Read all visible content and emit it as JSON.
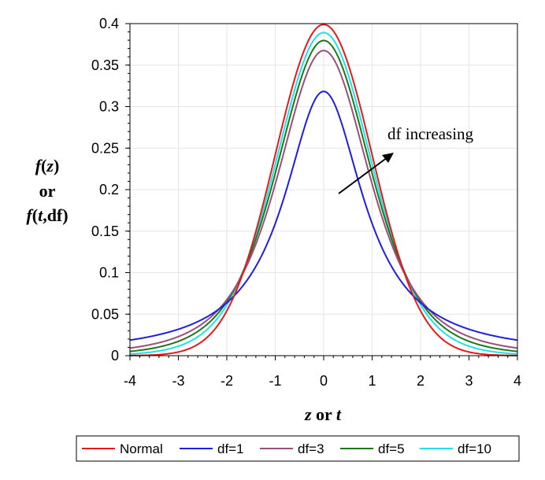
{
  "chart_data": {
    "type": "line",
    "title": "",
    "ylabel_lines": [
      {
        "italic": "f",
        "rest": "(",
        "var": "z",
        "end": ")"
      },
      {
        "plain": "or"
      },
      {
        "italic": "f",
        "rest": "(",
        "var": "t",
        "end": ",df)"
      }
    ],
    "xlabel": {
      "a": "z",
      "mid": " or ",
      "b": "t"
    },
    "xlim": [
      -4,
      4
    ],
    "ylim": [
      0,
      0.4
    ],
    "xticks": [
      "-4",
      "-3",
      "-2",
      "-1",
      "0",
      "1",
      "2",
      "3",
      "4"
    ],
    "yticks": [
      "0",
      "0.05",
      "0.1",
      "0.15",
      "0.2",
      "0.25",
      "0.3",
      "0.35",
      "0.4"
    ],
    "grid": true,
    "legend_position": "bottom",
    "annotation": "df increasing",
    "series": [
      {
        "name": "Normal",
        "kind": "normal",
        "color": "#e41a1c"
      },
      {
        "name": "df=1",
        "kind": "t",
        "df": 1,
        "color": "#1f1fe0"
      },
      {
        "name": "df=3",
        "kind": "t",
        "df": 3,
        "color": "#9b4f7a"
      },
      {
        "name": "df=5",
        "kind": "t",
        "df": 5,
        "color": "#1a7a1a"
      },
      {
        "name": "df=10",
        "kind": "t",
        "df": 10,
        "color": "#22e0e8"
      }
    ],
    "sample_x": [
      -4,
      -3.5,
      -3,
      -2.5,
      -2,
      -1.5,
      -1,
      -0.5,
      0,
      0.5,
      1,
      1.5,
      2,
      2.5,
      3,
      3.5,
      4
    ],
    "sample_values": {
      "Normal": [
        0.0001,
        0.0009,
        0.0044,
        0.0175,
        0.054,
        0.1295,
        0.242,
        0.3521,
        0.3989,
        0.3521,
        0.242,
        0.1295,
        0.054,
        0.0175,
        0.0044,
        0.0009,
        0.0001
      ],
      "df=1": [
        0.0187,
        0.0241,
        0.0318,
        0.0439,
        0.0637,
        0.0979,
        0.1592,
        0.2546,
        0.3183,
        0.2546,
        0.1592,
        0.0979,
        0.0637,
        0.0439,
        0.0318,
        0.0241,
        0.0187
      ],
      "df=3": [
        0.0092,
        0.0141,
        0.023,
        0.04,
        0.0675,
        0.1169,
        0.2067,
        0.3125,
        0.3676,
        0.3125,
        0.2067,
        0.1169,
        0.0675,
        0.04,
        0.023,
        0.0141,
        0.0092
      ],
      "df=5": [
        0.0051,
        0.009,
        0.0173,
        0.0341,
        0.0651,
        0.1245,
        0.2197,
        0.3279,
        0.3796,
        0.3279,
        0.2197,
        0.1245,
        0.0651,
        0.0341,
        0.0173,
        0.009,
        0.0051
      ],
      "df=10": [
        0.002,
        0.0048,
        0.0114,
        0.0269,
        0.0611,
        0.1274,
        0.2304,
        0.3397,
        0.3891,
        0.3397,
        0.2304,
        0.1274,
        0.0611,
        0.0269,
        0.0114,
        0.0048,
        0.002
      ]
    }
  }
}
